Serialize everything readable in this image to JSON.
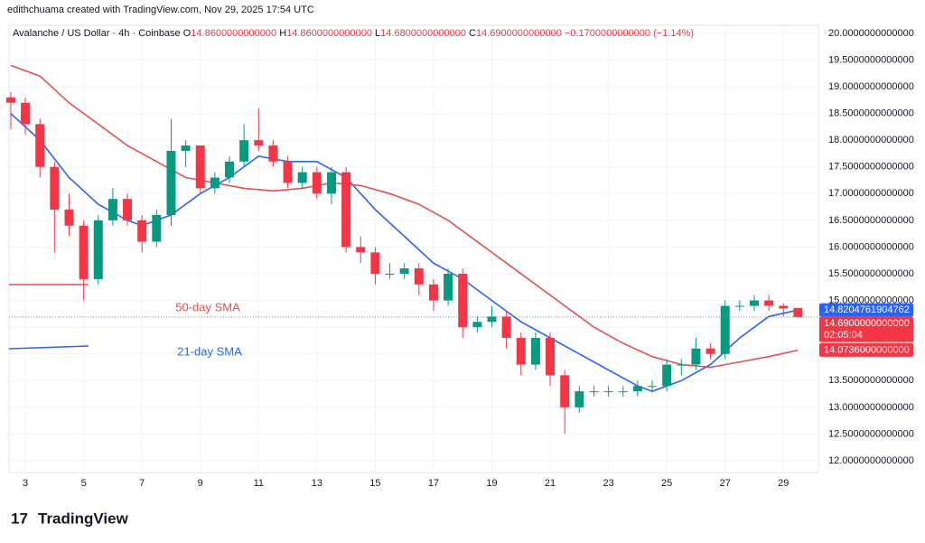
{
  "chart_data": {
    "type": "candlestick",
    "subtitle": "edithchuama created with TradingView.com, Nov 29, 2025 17:54 UTC",
    "title": "Avalanche / US Dollar · 4h · Coinbase",
    "ohlc_legend": [
      {
        "key": "O",
        "value": "14.8600000000000"
      },
      {
        "key": "H",
        "value": "14.8600000000000"
      },
      {
        "key": "L",
        "value": "14.6800000000000"
      },
      {
        "key": "C",
        "value": "14.6900000000000"
      }
    ],
    "change": "−0.1700000000000 (−1.14%)",
    "brand": "TradingView",
    "up_color": "#089981",
    "down_color": "#f23645",
    "x": [
      2.5,
      3,
      3.5,
      4,
      4.5,
      5,
      5.5,
      6,
      6.5,
      7,
      7.5,
      8,
      8.5,
      9,
      9.5,
      10,
      10.5,
      11,
      11.5,
      12,
      12.5,
      13,
      13.5,
      14,
      14.5,
      15,
      15.5,
      16,
      16.5,
      17,
      17.5,
      18,
      18.5,
      19,
      19.5,
      20,
      20.5,
      21,
      21.5,
      22,
      22.5,
      23,
      23.5,
      24,
      24.5,
      25,
      25.5,
      26,
      26.5,
      27,
      27.5,
      28,
      28.5,
      29,
      29.5
    ],
    "open": [
      18.8,
      18.7,
      18.3,
      17.5,
      16.7,
      16.4,
      15.4,
      16.5,
      16.9,
      16.5,
      16.1,
      16.6,
      17.8,
      17.9,
      17.1,
      17.3,
      17.6,
      18.0,
      17.9,
      17.6,
      17.2,
      17.4,
      17.0,
      17.4,
      16.0,
      15.9,
      15.5,
      15.5,
      15.6,
      15.3,
      15.0,
      15.5,
      14.5,
      14.6,
      14.7,
      14.3,
      13.8,
      14.3,
      13.6,
      13.0,
      13.3,
      13.3,
      13.3,
      13.3,
      13.4,
      13.4,
      13.8,
      13.8,
      14.1,
      14.0,
      14.9,
      14.9,
      15.0,
      14.9,
      14.86
    ],
    "high": [
      18.9,
      18.8,
      18.4,
      17.6,
      17.0,
      16.5,
      16.6,
      17.1,
      17.0,
      16.6,
      16.7,
      18.4,
      18.0,
      17.9,
      17.4,
      17.7,
      18.3,
      18.6,
      18.0,
      17.7,
      17.5,
      17.5,
      17.5,
      17.5,
      16.2,
      16.0,
      15.7,
      15.7,
      15.7,
      15.4,
      15.6,
      15.6,
      14.7,
      14.9,
      14.8,
      14.4,
      14.4,
      14.4,
      13.7,
      13.4,
      13.4,
      13.4,
      13.4,
      13.5,
      13.5,
      13.9,
      13.9,
      14.3,
      14.2,
      15.0,
      15.0,
      15.1,
      15.1,
      14.95,
      14.86
    ],
    "low": [
      18.2,
      18.1,
      17.3,
      15.9,
      16.2,
      15.0,
      15.3,
      16.4,
      16.4,
      15.9,
      16.0,
      16.4,
      17.5,
      17.0,
      17.0,
      17.2,
      17.5,
      17.8,
      17.5,
      17.1,
      17.1,
      16.9,
      16.8,
      15.9,
      15.7,
      15.3,
      15.4,
      15.4,
      15.1,
      14.8,
      14.9,
      14.3,
      14.4,
      14.5,
      14.1,
      13.6,
      13.7,
      13.4,
      12.5,
      12.9,
      13.2,
      13.2,
      13.2,
      13.2,
      13.3,
      13.3,
      13.6,
      13.7,
      13.9,
      13.9,
      14.8,
      14.8,
      14.8,
      14.7,
      14.68
    ],
    "close": [
      18.7,
      18.3,
      17.5,
      16.7,
      16.4,
      15.4,
      16.5,
      16.9,
      16.5,
      16.1,
      16.6,
      17.8,
      17.9,
      17.1,
      17.3,
      17.6,
      18.0,
      17.9,
      17.6,
      17.2,
      17.4,
      17.0,
      17.4,
      16.0,
      15.9,
      15.5,
      15.5,
      15.6,
      15.3,
      15.0,
      15.5,
      14.5,
      14.6,
      14.7,
      14.3,
      13.8,
      14.3,
      13.6,
      13.0,
      13.3,
      13.3,
      13.3,
      13.3,
      13.4,
      13.4,
      13.8,
      13.8,
      14.1,
      14.0,
      14.9,
      14.9,
      15.0,
      14.9,
      14.85,
      14.69
    ],
    "lines": [
      {
        "name": "21-day SMA",
        "color": "#2962ff",
        "x": [
          2.5,
          3.5,
          4.5,
          5.5,
          6.5,
          7,
          8,
          9,
          10,
          11,
          12,
          13,
          14,
          15,
          16,
          17,
          18,
          19,
          20,
          21,
          22,
          23,
          24,
          24.5,
          25.5,
          26.5,
          27.5,
          28.5,
          29.5
        ],
        "values": [
          18.5,
          18.0,
          17.3,
          16.8,
          16.5,
          16.4,
          16.6,
          17.0,
          17.3,
          17.7,
          17.6,
          17.6,
          17.3,
          16.7,
          16.2,
          15.7,
          15.4,
          15.0,
          14.6,
          14.3,
          14.0,
          13.7,
          13.4,
          13.3,
          13.5,
          13.8,
          14.3,
          14.7,
          14.82
        ]
      },
      {
        "name": "50-day SMA",
        "color": "#e05050",
        "x": [
          2.5,
          3.5,
          4.5,
          5.5,
          6.5,
          7.5,
          8.5,
          9.5,
          10.5,
          11.5,
          12.5,
          13.5,
          14.5,
          15.5,
          16.5,
          17.5,
          18.5,
          19.5,
          20.5,
          21.5,
          22.5,
          23.5,
          24.5,
          25.5,
          26.5,
          27.5,
          28.5,
          29.5
        ],
        "values": [
          19.4,
          19.2,
          18.7,
          18.3,
          17.9,
          17.6,
          17.3,
          17.2,
          17.1,
          17.05,
          17.1,
          17.2,
          17.15,
          17.0,
          16.8,
          16.5,
          16.1,
          15.7,
          15.3,
          14.9,
          14.5,
          14.2,
          13.95,
          13.8,
          13.75,
          13.85,
          13.95,
          14.07
        ]
      }
    ],
    "price_labels": [
      {
        "value": 14.8204761904762,
        "label": "14.8204761904762",
        "color": "#2962ff"
      },
      {
        "value": 14.69,
        "label": "14.6900000000000",
        "color": "#f23645",
        "countdown": "02:05:04"
      },
      {
        "value": 14.0736,
        "label": "14.0736000000000",
        "color": "#f23645"
      }
    ],
    "xlim": [
      2.44,
      30.2
    ],
    "xticks": [
      3,
      5,
      7,
      9,
      11,
      13,
      15,
      17,
      19,
      21,
      23,
      25,
      27,
      29
    ],
    "ylim": [
      11.78,
      20.15
    ],
    "yticks": [
      {
        "value": 12,
        "label": "12.0000000000000"
      },
      {
        "value": 12.5,
        "label": "12.5000000000000"
      },
      {
        "value": 13,
        "label": "13.0000000000000"
      },
      {
        "value": 13.5,
        "label": "13.5000000000000"
      },
      {
        "value": 14,
        "label": "14.0000000000000"
      },
      {
        "value": 14.5,
        "label": "14.5000000000000"
      },
      {
        "value": 15,
        "label": "15.0000000000000"
      },
      {
        "value": 15.5,
        "label": "15.5000000000000"
      },
      {
        "value": 16,
        "label": "16.0000000000000"
      },
      {
        "value": 16.5,
        "label": "16.5000000000000"
      },
      {
        "value": 17,
        "label": "17.0000000000000"
      },
      {
        "value": 17.5,
        "label": "17.5000000000000"
      },
      {
        "value": 18,
        "label": "18.0000000000000"
      },
      {
        "value": 18.5,
        "label": "18.5000000000000"
      },
      {
        "value": 19,
        "label": "19.0000000000000"
      },
      {
        "value": 19.5,
        "label": "19.5000000000000"
      },
      {
        "value": 20,
        "label": "20.0000000000000"
      }
    ],
    "grid": true
  }
}
